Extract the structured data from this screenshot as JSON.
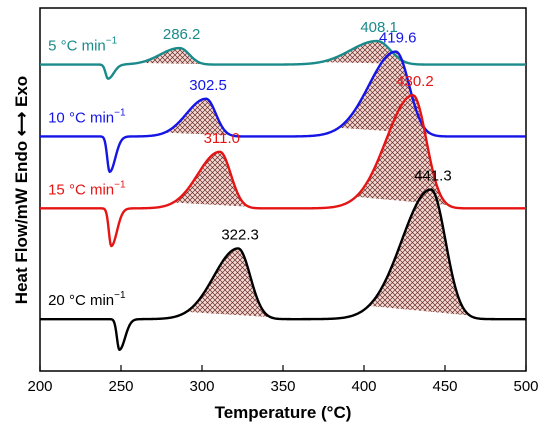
{
  "chart_data": {
    "type": "line",
    "xlabel": "Temperature (°C)",
    "ylabel": "Heat Flow/mW Endo",
    "ylabel_exo": "Exo",
    "xlim": [
      200,
      500
    ],
    "xticks": [
      "200",
      "250",
      "300",
      "350",
      "400",
      "450",
      "500"
    ],
    "y_ticks_shown": false,
    "grid": false,
    "series": [
      {
        "name": "5 °C min⁻¹",
        "label_parts": [
          "5 °C min",
          "−1"
        ],
        "color": "#1a8a8a",
        "baseline": 0.88,
        "dip": {
          "x": 242,
          "depth": 0.06
        },
        "peaks": [
          {
            "x": 286.2,
            "label": "286.2",
            "height": 0.07,
            "width": 8
          },
          {
            "x": 408.1,
            "label": "408.1",
            "height": 0.1,
            "width": 11
          }
        ]
      },
      {
        "name": "10 °C min⁻¹",
        "label_parts": [
          "10 °C min",
          "−1"
        ],
        "color": "#1515e6",
        "baseline": 0.575,
        "dip": {
          "x": 243,
          "depth": 0.15
        },
        "peaks": [
          {
            "x": 302.5,
            "label": "302.5",
            "height": 0.16,
            "width": 8
          },
          {
            "x": 419.6,
            "label": "419.6",
            "height": 0.36,
            "width": 11
          }
        ]
      },
      {
        "name": "15 °C min⁻¹",
        "label_parts": [
          "15 °C min",
          "−1"
        ],
        "color": "#e61515",
        "baseline": 0.27,
        "dip": {
          "x": 244,
          "depth": 0.16
        },
        "peaks": [
          {
            "x": 311.0,
            "label": "311.0",
            "height": 0.24,
            "width": 9
          },
          {
            "x": 430.2,
            "label": "430.2",
            "height": 0.48,
            "width": 11
          }
        ]
      },
      {
        "name": "20 °C min⁻¹",
        "label_parts": [
          "20 °C min",
          "−1"
        ],
        "color": "#000000",
        "baseline": -0.2,
        "dip": {
          "x": 249,
          "depth": 0.13
        },
        "peaks": [
          {
            "x": 322.3,
            "label": "322.3",
            "height": 0.3,
            "width": 10
          },
          {
            "x": 441.3,
            "label": "441.3",
            "height": 0.55,
            "width": 12
          }
        ]
      }
    ]
  }
}
